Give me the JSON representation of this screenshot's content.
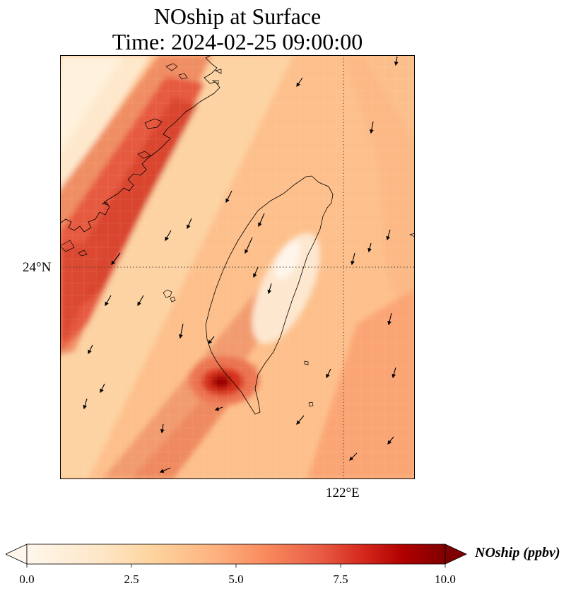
{
  "title": {
    "line1": "NOship at Surface",
    "line2": "Time: 2024-02-25 09:00:00"
  },
  "map": {
    "variable": "NOship",
    "level": "Surface",
    "region": "Taiwan and Fujian coast",
    "gridlines": [
      {
        "type": "latitude",
        "label": "24°N"
      },
      {
        "type": "longitude",
        "label": "122°E"
      }
    ],
    "features": [
      "coastline",
      "wind-vectors",
      "shipping-lane-NO-band"
    ],
    "colormap": "OrRd"
  },
  "colorbar": {
    "label": "NOship (ppbv)",
    "ticks": [
      "0.0",
      "2.5",
      "5.0",
      "7.5",
      "10.0"
    ],
    "min": 0,
    "max": 10,
    "extend": "both",
    "colors": [
      "#fff7ec",
      "#fdd49e",
      "#fdbb84",
      "#fc8d59",
      "#ef6548",
      "#d7301f",
      "#b30000",
      "#7f0000"
    ]
  }
}
